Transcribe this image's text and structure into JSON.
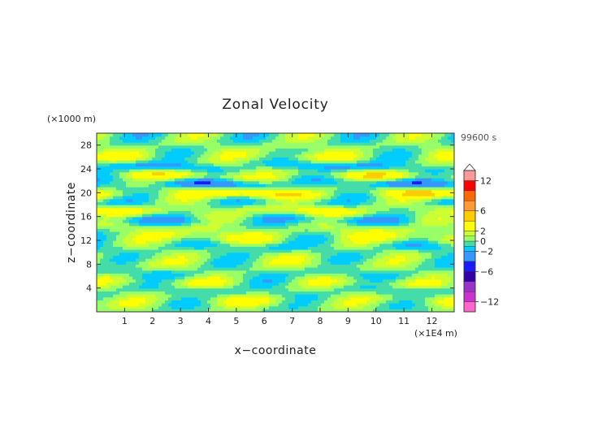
{
  "chart_data": {
    "type": "heatmap",
    "title": "Zonal Velocity",
    "xlabel": "x−coordinate",
    "ylabel": "z−coordinate",
    "x_unit": "(×1E4 m)",
    "y_unit": "(×1000 m)",
    "time_label": "99600 s",
    "xlim": [
      0,
      12.8
    ],
    "ylim": [
      0,
      30
    ],
    "x_ticks": [
      "1",
      "2",
      "3",
      "4",
      "5",
      "6",
      "7",
      "8",
      "9",
      "10",
      "11",
      "12"
    ],
    "y_ticks": [
      "4",
      "8",
      "12",
      "16",
      "20",
      "24",
      "28"
    ],
    "colorbar": {
      "levels": [
        -14,
        -12,
        -10,
        -8,
        -6,
        -4,
        -2,
        -1,
        0,
        1,
        2,
        4,
        6,
        8,
        10,
        12,
        14
      ],
      "colors": [
        "#ff66cc",
        "#cc33cc",
        "#9933cc",
        "#3300aa",
        "#1a1aff",
        "#3399ff",
        "#00ccff",
        "#44ddaa",
        "#99ff66",
        "#ccff33",
        "#ffff00",
        "#ffcc00",
        "#ff9933",
        "#ff6600",
        "#ff0000",
        "#ff9999"
      ],
      "tick_labels": [
        "12",
        "6",
        "2",
        "0",
        "−2",
        "−6",
        "−12"
      ]
    },
    "z_bands": [
      {
        "z": 0.5,
        "value": 0
      },
      {
        "z": 2,
        "value": 2
      },
      {
        "z": 3.5,
        "value": -1
      },
      {
        "z": 5,
        "value": 1.5
      },
      {
        "z": 6.5,
        "value": -1
      },
      {
        "z": 8,
        "value": 1
      },
      {
        "z": 9.5,
        "value": 0.5
      },
      {
        "z": 11,
        "value": -1.5
      },
      {
        "z": 12.5,
        "value": 2.5
      },
      {
        "z": 14,
        "value": 1.5
      },
      {
        "z": 15.5,
        "value": -2.5
      },
      {
        "z": 17,
        "value": 3
      },
      {
        "z": 18.5,
        "value": -1
      },
      {
        "z": 20,
        "value": 5
      },
      {
        "z": 21.5,
        "value": -4
      },
      {
        "z": 23,
        "value": 3.5
      },
      {
        "z": 24.5,
        "value": -3
      },
      {
        "z": 26,
        "value": 2
      },
      {
        "z": 27.5,
        "value": 0.5
      },
      {
        "z": 29,
        "value": 0
      }
    ]
  }
}
